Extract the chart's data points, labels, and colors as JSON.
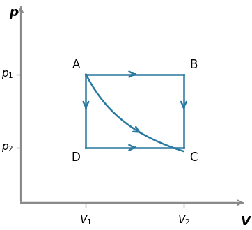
{
  "V1": 2.0,
  "V2": 5.0,
  "p1": 3.5,
  "p2": 1.5,
  "color": "#2878a0",
  "linewidth": 1.8,
  "background": "#ffffff",
  "xlim": [
    -0.3,
    7.0
  ],
  "ylim": [
    -0.5,
    5.5
  ],
  "xlabel": "V",
  "ylabel": "p",
  "label_A": "A",
  "label_B": "B",
  "label_C": "C",
  "label_D": "D",
  "fontsize": 12,
  "axis_color": "#888888"
}
